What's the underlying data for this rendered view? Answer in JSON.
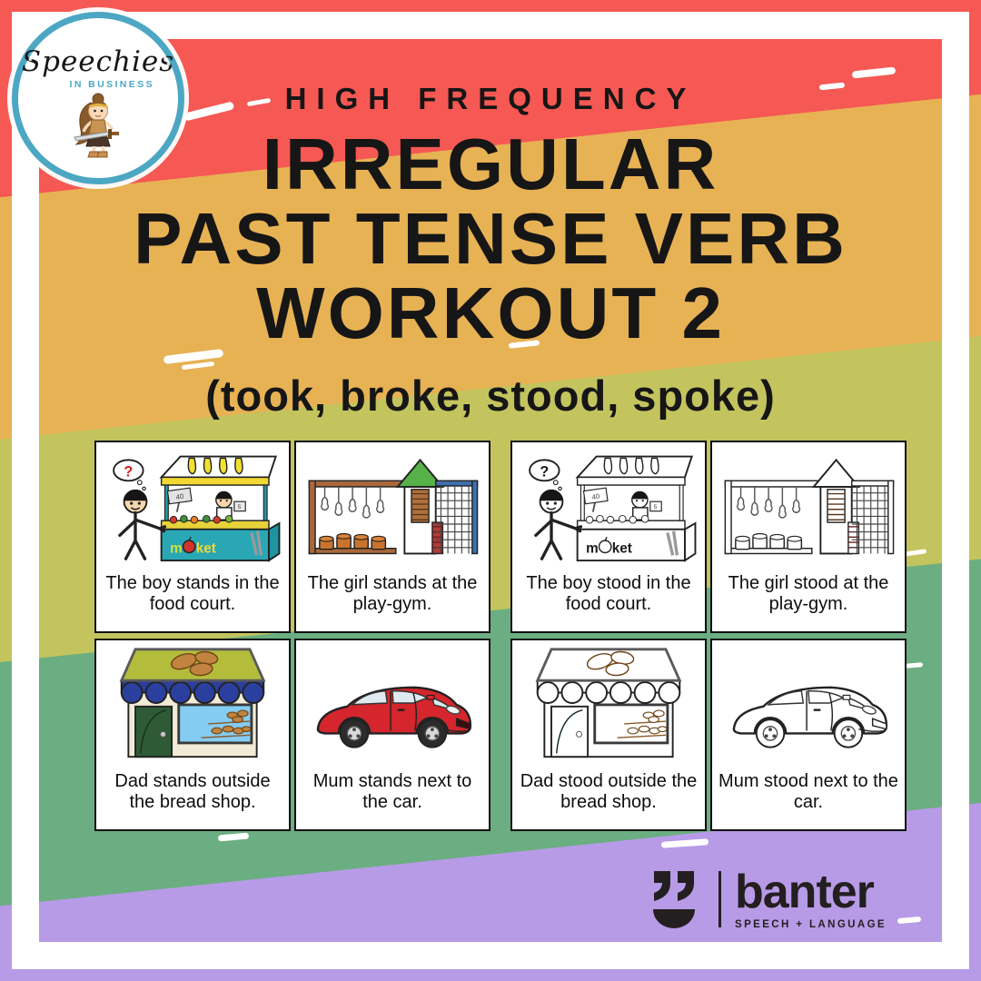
{
  "poster": {
    "kicker": "HIGH FREQUENCY",
    "title_line1": "IRREGULAR",
    "title_line2": "PAST TENSE VERB",
    "title_line3": "WORKOUT 2",
    "subtitle": "(took, broke, stood, spoke)"
  },
  "publisher_logo": {
    "brand": "Speechies",
    "sub_brand": "IN BUSINESS",
    "mascot": "cartoon-warrior-girl-with-sword"
  },
  "card_groups": [
    {
      "tense": "present",
      "cards": [
        {
          "image": "market-stall",
          "variant": "color",
          "caption": "The boy stands in the food court."
        },
        {
          "image": "play-gym",
          "variant": "color",
          "caption": "The girl stands at the play-gym."
        },
        {
          "image": "bread-shop",
          "variant": "color",
          "caption": "Dad stands outside the bread shop."
        },
        {
          "image": "car",
          "variant": "color",
          "caption": "Mum stands next to the car."
        }
      ]
    },
    {
      "tense": "past",
      "cards": [
        {
          "image": "market-stall",
          "variant": "bw",
          "caption": "The boy stood in the food court."
        },
        {
          "image": "play-gym",
          "variant": "bw",
          "caption": "The girl stood at the play-gym."
        },
        {
          "image": "bread-shop",
          "variant": "bw",
          "caption": "Dad stood outside the bread shop."
        },
        {
          "image": "car",
          "variant": "bw",
          "caption": "Mum stood next to the car."
        }
      ]
    }
  ],
  "footer_logo": {
    "wordmark": "banter",
    "tagline": "SPEECH + LANGUAGE",
    "icon": "quotes-smile-icon"
  },
  "colors": {
    "coral": "#f65853",
    "gold": "#e7b254",
    "olive": "#c3c45e",
    "green": "#6bae81",
    "purple": "#b79be7",
    "teal": "#4ba7c3",
    "frame_white": "#ffffff",
    "ink": "#161616"
  }
}
